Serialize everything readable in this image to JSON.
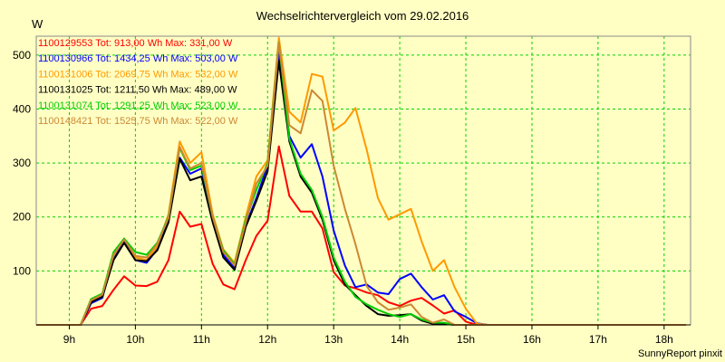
{
  "colors": {
    "background": "#ffffc4",
    "grid": "#00d400",
    "axis": "#000000"
  },
  "chart_data": {
    "type": "line",
    "title": "Wechselrichtervergleich vom 29.02.2016",
    "ylabel": "W",
    "xlabel": "",
    "footer": "SunnyReport pinxit",
    "ylim": [
      0,
      535
    ],
    "yticks": [
      100,
      200,
      300,
      400,
      500
    ],
    "xlim": [
      8.5,
      18.4
    ],
    "xticks": [
      {
        "value": 9,
        "label": "9h"
      },
      {
        "value": 10,
        "label": "10h"
      },
      {
        "value": 11,
        "label": "11h"
      },
      {
        "value": 12,
        "label": "12h"
      },
      {
        "value": 13,
        "label": "13h"
      },
      {
        "value": 14,
        "label": "14h"
      },
      {
        "value": 15,
        "label": "15h"
      },
      {
        "value": 16,
        "label": "16h"
      },
      {
        "value": 17,
        "label": "17h"
      },
      {
        "value": 18,
        "label": "18h"
      }
    ],
    "grid": true,
    "legend_position": "top-left",
    "x": [
      8.5,
      8.67,
      8.83,
      9.0,
      9.17,
      9.33,
      9.5,
      9.67,
      9.83,
      10.0,
      10.17,
      10.33,
      10.5,
      10.67,
      10.83,
      11.0,
      11.17,
      11.33,
      11.5,
      11.67,
      11.83,
      12.0,
      12.17,
      12.33,
      12.5,
      12.67,
      12.83,
      13.0,
      13.17,
      13.33,
      13.5,
      13.67,
      13.83,
      14.0,
      14.17,
      14.33,
      14.5,
      14.67,
      14.83,
      15.0,
      15.17,
      15.33,
      15.5,
      15.67,
      15.83,
      16.0,
      16.17,
      16.33,
      16.5,
      16.67,
      16.83,
      17.0,
      17.17,
      17.33,
      17.5,
      17.67,
      17.83,
      18.0,
      18.17,
      18.33
    ],
    "series": [
      {
        "name": "1100129553",
        "legend": "1100129553 Tot: 913,00 Wh Max: 331,00 W",
        "color": "#ff0000",
        "values": [
          0,
          0,
          0,
          0,
          0,
          30,
          35,
          65,
          90,
          73,
          72,
          80,
          120,
          210,
          182,
          187,
          113,
          75,
          66,
          120,
          165,
          193,
          331,
          239,
          210,
          210,
          179,
          98,
          73,
          68,
          60,
          55,
          42,
          35,
          45,
          50,
          36,
          21,
          27,
          6,
          0,
          0,
          0,
          0,
          0,
          0,
          0,
          0,
          0,
          0,
          0,
          0,
          0,
          0,
          0,
          0,
          0,
          0,
          0,
          0
        ]
      },
      {
        "name": "1100130966",
        "legend": "1100130966 Tot: 1434,25 Wh Max: 503,00 W",
        "color": "#0000ff",
        "values": [
          0,
          0,
          0,
          0,
          0,
          40,
          50,
          125,
          155,
          120,
          115,
          140,
          195,
          310,
          280,
          290,
          195,
          130,
          105,
          185,
          235,
          295,
          503,
          350,
          310,
          335,
          275,
          175,
          110,
          70,
          75,
          60,
          57,
          85,
          95,
          70,
          47,
          55,
          25,
          15,
          3,
          0,
          0,
          0,
          0,
          0,
          0,
          0,
          0,
          0,
          0,
          0,
          0,
          0,
          0,
          0,
          0,
          0,
          0,
          0
        ]
      },
      {
        "name": "1100131006",
        "legend": "1100131006 Tot: 2069,75 Wh Max: 532,00 W",
        "color": "#ff9900",
        "values": [
          0,
          0,
          0,
          0,
          0,
          45,
          55,
          128,
          160,
          125,
          120,
          145,
          205,
          340,
          300,
          320,
          205,
          140,
          115,
          200,
          275,
          305,
          532,
          395,
          375,
          465,
          460,
          360,
          375,
          402,
          325,
          235,
          195,
          205,
          215,
          155,
          100,
          120,
          70,
          30,
          2,
          0,
          0,
          0,
          0,
          0,
          0,
          0,
          0,
          0,
          0,
          0,
          0,
          0,
          0,
          0,
          0,
          0,
          0,
          0
        ]
      },
      {
        "name": "1100131025",
        "legend": "1100131025 Tot: 1211,50 Wh Max: 489,00 W",
        "color": "#000000",
        "values": [
          0,
          0,
          0,
          0,
          0,
          42,
          52,
          120,
          152,
          120,
          118,
          138,
          190,
          308,
          268,
          275,
          190,
          125,
          102,
          182,
          230,
          285,
          489,
          340,
          275,
          245,
          195,
          120,
          75,
          55,
          35,
          20,
          17,
          18,
          20,
          8,
          2,
          2,
          0,
          0,
          0,
          0,
          0,
          0,
          0,
          0,
          0,
          0,
          0,
          0,
          0,
          0,
          0,
          0,
          0,
          0,
          0,
          0,
          0,
          0
        ]
      },
      {
        "name": "1100131074",
        "legend": "1100131074 Tot: 1291,25 Wh Max: 523,00 W",
        "color": "#00cc00",
        "values": [
          0,
          0,
          0,
          0,
          0,
          48,
          58,
          135,
          160,
          135,
          130,
          152,
          200,
          328,
          287,
          295,
          200,
          138,
          112,
          195,
          250,
          300,
          523,
          345,
          280,
          250,
          200,
          125,
          80,
          52,
          38,
          28,
          20,
          15,
          20,
          10,
          4,
          4,
          0,
          0,
          0,
          0,
          0,
          0,
          0,
          0,
          0,
          0,
          0,
          0,
          0,
          0,
          0,
          0,
          0,
          0,
          0,
          0,
          0,
          0
        ]
      },
      {
        "name": "1100148421",
        "legend": "1100148421 Tot: 1525,75 Wh Max: 522,00 W",
        "color": "#cc8833",
        "values": [
          0,
          0,
          0,
          0,
          0,
          46,
          56,
          130,
          158,
          128,
          125,
          150,
          198,
          330,
          290,
          300,
          200,
          135,
          110,
          190,
          262,
          295,
          522,
          370,
          355,
          435,
          415,
          295,
          215,
          150,
          72,
          42,
          28,
          32,
          38,
          15,
          4,
          10,
          0,
          0,
          0,
          0,
          0,
          0,
          0,
          0,
          0,
          0,
          0,
          0,
          0,
          0,
          0,
          0,
          0,
          0,
          0,
          0,
          0,
          0
        ]
      }
    ]
  }
}
